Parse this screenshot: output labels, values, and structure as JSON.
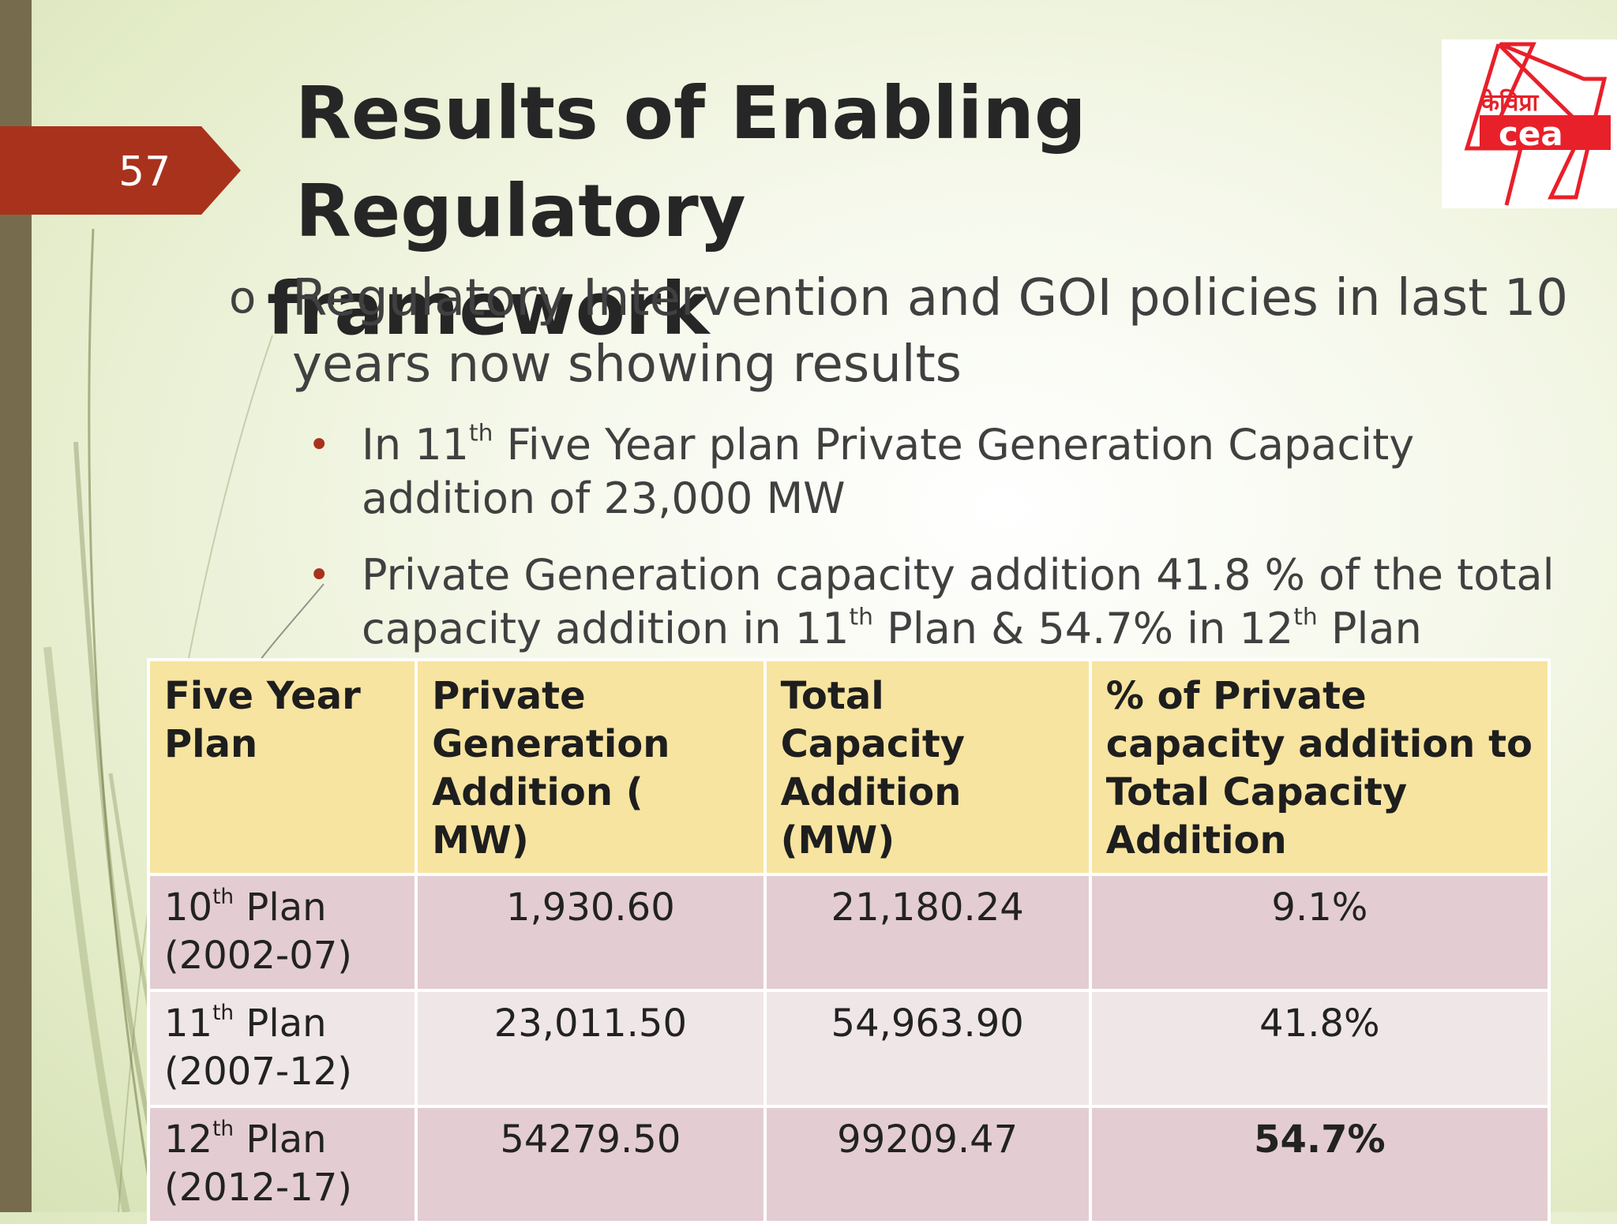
{
  "slide": {
    "number": "57",
    "title_line1": "Results of Enabling  Regulatory",
    "title_line2": "framework"
  },
  "logo": {
    "text_hindi": "केविप्रा",
    "text_latin": "cea",
    "colors": {
      "red": "#e8202a",
      "white": "#ffffff"
    }
  },
  "bullets": {
    "main_marker": "o",
    "main_text": "Regulatory Intervention and GOI policies in last 10 years now showing results",
    "sub": [
      {
        "marker": "•",
        "pre": "In 11",
        "sup": "th",
        "post": " Five Year plan Private Generation Capacity addition of 23,000 MW"
      },
      {
        "marker": "•",
        "pre": "Private  Generation  capacity addition 41.8 % of the total capacity addition in 11",
        "sup": "th",
        "mid": " Plan & 54.7% in 12",
        "sup2": "th",
        "post": " Plan"
      }
    ]
  },
  "table": {
    "headers": [
      "Five Year Plan",
      "Private Generation Addition ( MW)",
      "Total Capacity Addition (MW)",
      "% of Private capacity addition to Total Capacity Addition"
    ],
    "rows": [
      {
        "ord": "10",
        "sup": "th",
        "plan": " Plan",
        "period": "(2002-07)",
        "private": "1,930.60",
        "total": "21,180.24",
        "percent": "9.1%"
      },
      {
        "ord": "11",
        "sup": "th",
        "plan": " Plan",
        "period": "(2007-12)",
        "private": "23,011.50",
        "total": "54,963.90",
        "percent": "41.8%"
      },
      {
        "ord": "12",
        "sup": "th",
        "plan": " Plan",
        "period": "(2012-17)",
        "private": "54279.50",
        "total": "99209.47",
        "percent": "54.7%"
      }
    ]
  },
  "theme": {
    "accent_red": "#a9321c",
    "left_bar": "#776b4d",
    "header_fill": "#f7e4a0",
    "row_dark": "#e3cdd2",
    "row_light": "#efe6e8"
  }
}
